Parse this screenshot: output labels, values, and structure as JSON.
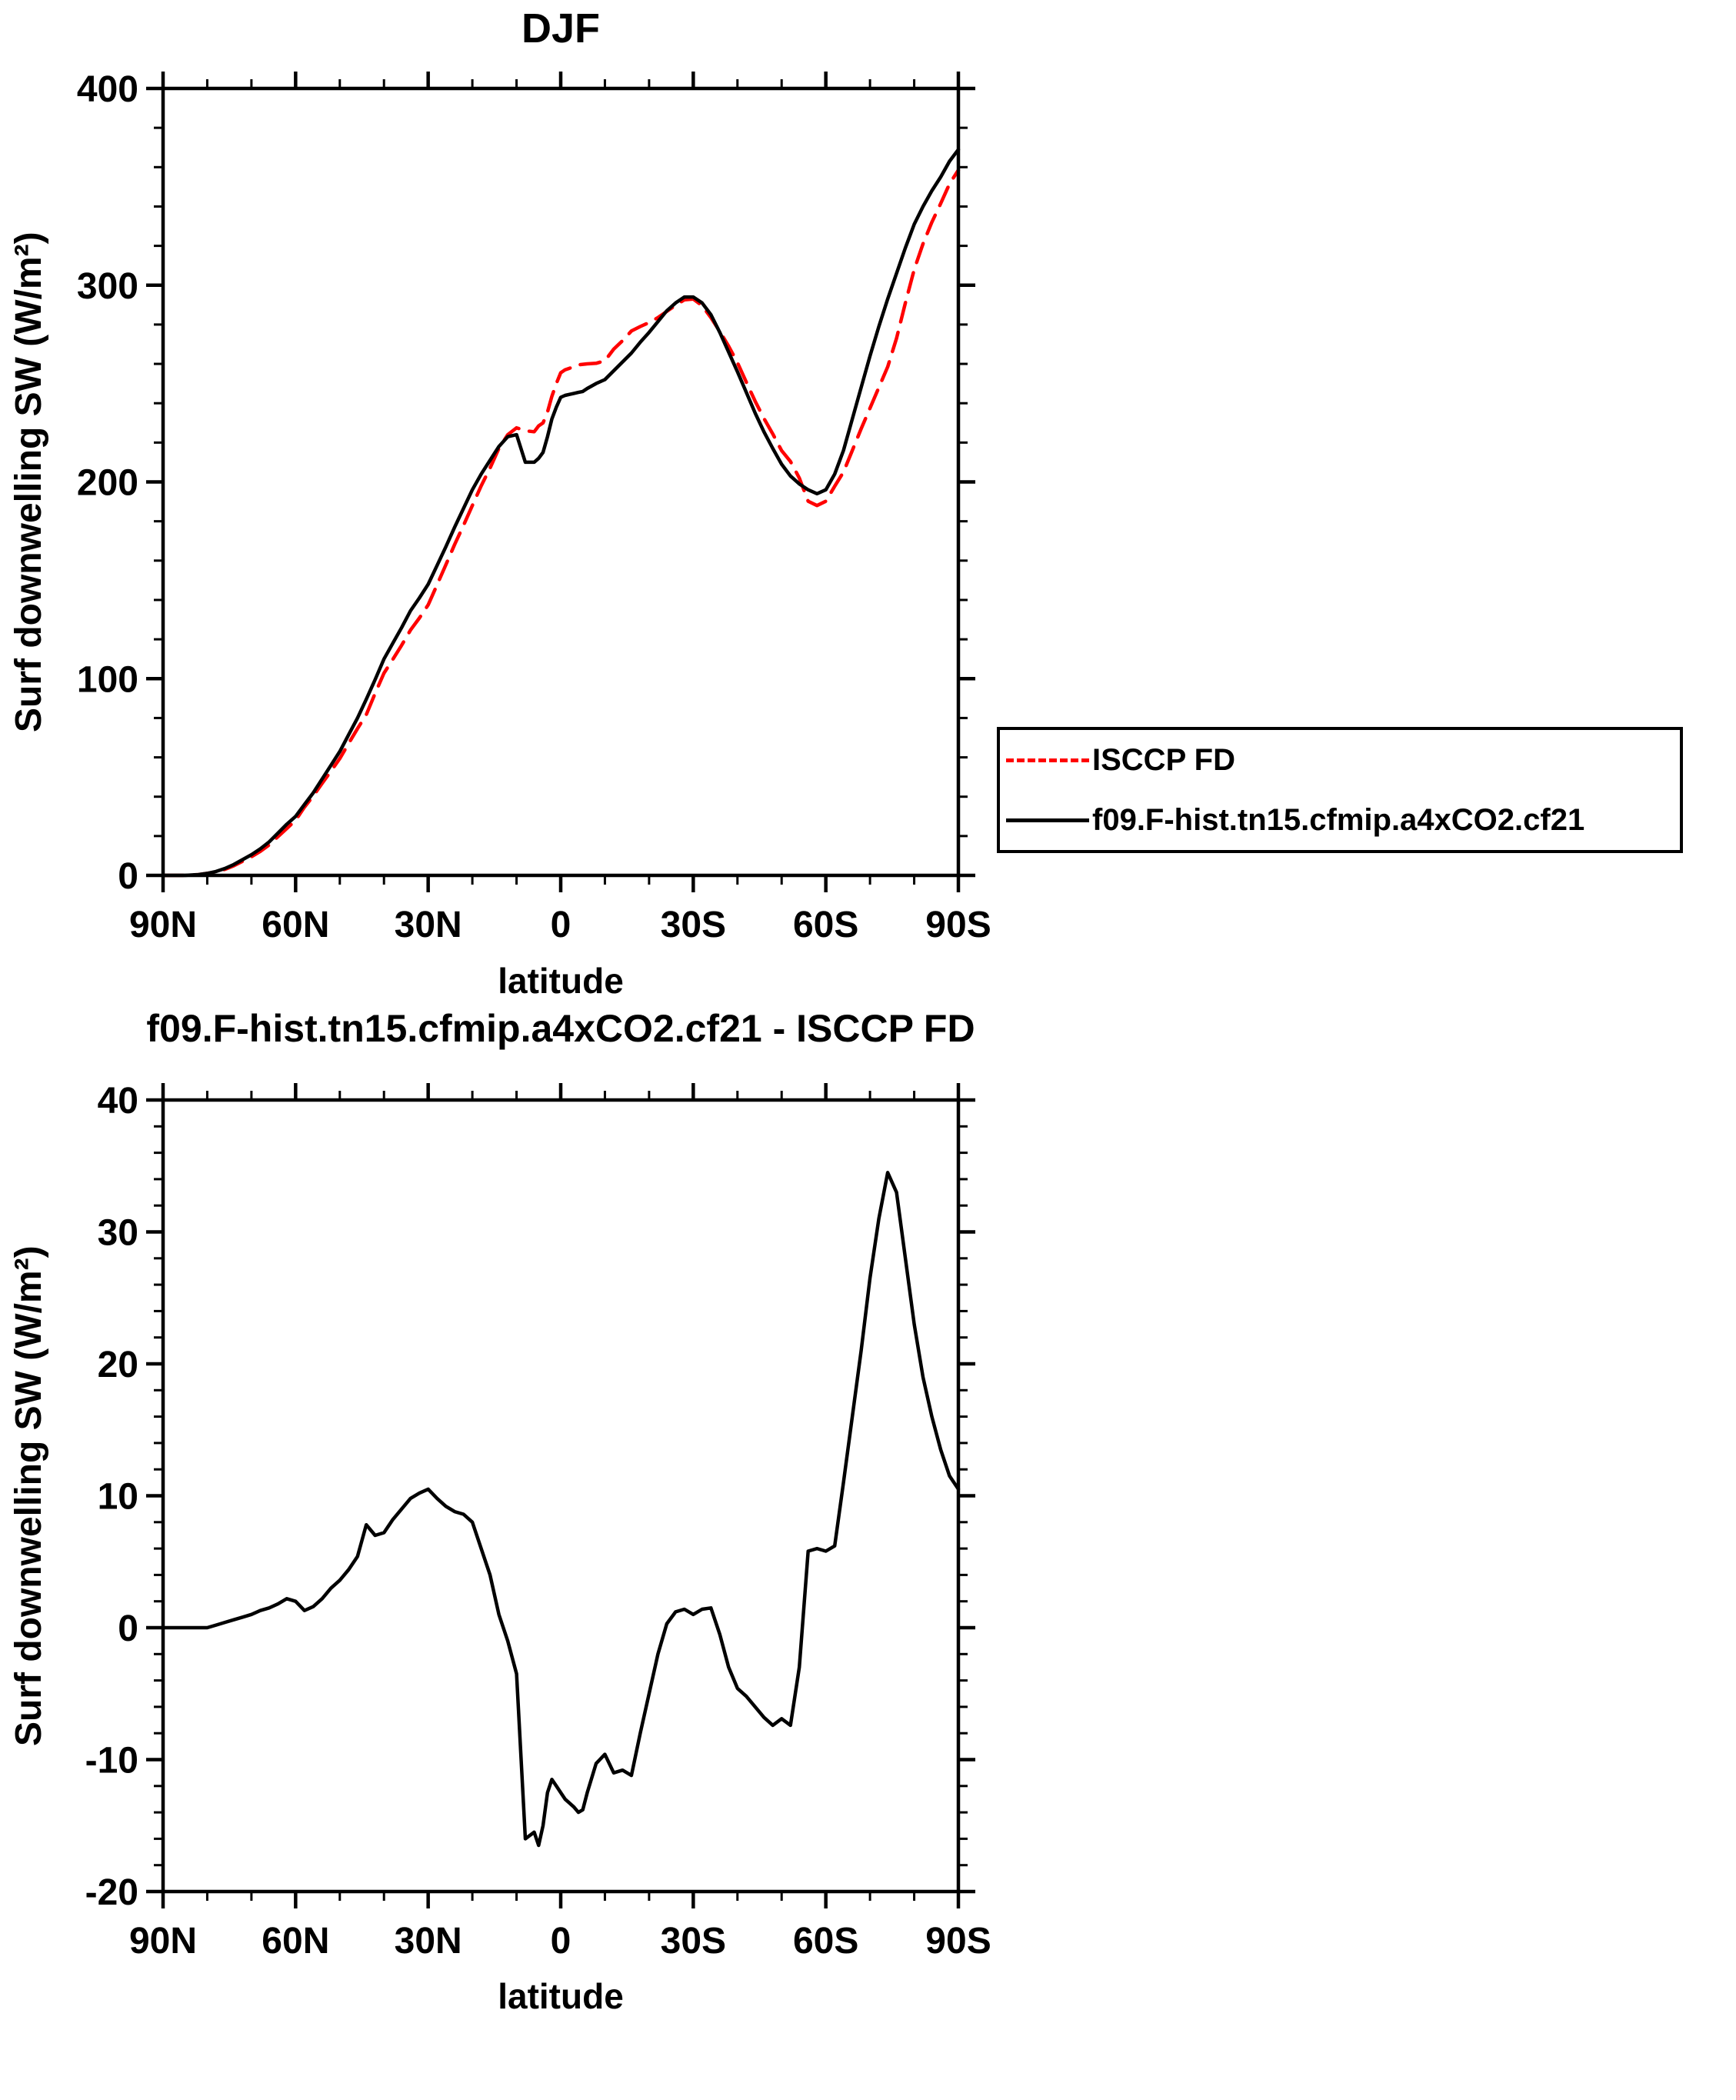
{
  "page": {
    "background": "#ffffff"
  },
  "chart_data": [
    {
      "type": "line",
      "title": "DJF",
      "xlabel": "latitude",
      "ylabel": "Surf downwelling SW (W/m²)",
      "xlim": [
        90,
        -90
      ],
      "ylim": [
        0,
        400
      ],
      "xtick_values": [
        90,
        60,
        30,
        0,
        -30,
        -60,
        -90
      ],
      "xtick_labels": [
        "90N",
        "60N",
        "30N",
        "0",
        "30S",
        "60S",
        "90S"
      ],
      "x_minor_step": 10,
      "ytick_values": [
        0,
        100,
        200,
        300,
        400
      ],
      "y_minor_step": 20,
      "grid": false,
      "legend_position": "outside-right",
      "lat": [
        90,
        87,
        85,
        82,
        80,
        78,
        76,
        74,
        72,
        70,
        68,
        66,
        64,
        62,
        60,
        58,
        56,
        54,
        52,
        50,
        48,
        46,
        44,
        42,
        40,
        38,
        36,
        34,
        32,
        30,
        28,
        26,
        24,
        22,
        20,
        18,
        16,
        14,
        12,
        10,
        8,
        6,
        5,
        4,
        3,
        2,
        1,
        0,
        -1,
        -2,
        -3,
        -4,
        -5,
        -6,
        -8,
        -10,
        -12,
        -14,
        -16,
        -18,
        -20,
        -22,
        -24,
        -26,
        -28,
        -30,
        -32,
        -34,
        -36,
        -38,
        -40,
        -42,
        -44,
        -46,
        -48,
        -50,
        -52,
        -54,
        -56,
        -58,
        -60,
        -62,
        -64,
        -66,
        -68,
        -70,
        -72,
        -74,
        -76,
        -78,
        -80,
        -82,
        -84,
        -86,
        -88,
        -90
      ],
      "series": [
        {
          "name": "ISCCP FD",
          "color": "#ff0000",
          "style": "dashed",
          "values": [
            0,
            0,
            0,
            0.4,
            1,
            1.8,
            3.1,
            4.9,
            7.2,
            9.5,
            12.2,
            15.5,
            19.7,
            23.8,
            28,
            34.7,
            40.4,
            46.8,
            53,
            59.4,
            67.1,
            74.6,
            81.7,
            92.5,
            102.8,
            109.8,
            117,
            124.7,
            130.8,
            137.5,
            147.7,
            157.8,
            168.2,
            177.9,
            188,
            198,
            207,
            217,
            224,
            227.5,
            226,
            225.5,
            228.5,
            230,
            235.5,
            243.5,
            250,
            255.5,
            257,
            257.8,
            258.6,
            259.5,
            259.8,
            260,
            260.3,
            261.6,
            267.5,
            271.8,
            276.7,
            279,
            281,
            283.5,
            286.7,
            289.8,
            292.6,
            293,
            289.6,
            283.5,
            276.5,
            269,
            260.6,
            250.7,
            241,
            232.3,
            224.4,
            215.9,
            210.4,
            202,
            190.2,
            188,
            190.2,
            197.8,
            205,
            216,
            227,
            237.5,
            248,
            258.5,
            273,
            291,
            308,
            321,
            332,
            341.5,
            351.5,
            358.5
          ]
        },
        {
          "name": "f09.F-hist.tn15.cfmip.a4xCO2.cf21",
          "color": "#000000",
          "style": "solid",
          "values": [
            0,
            0,
            0,
            0.4,
            1,
            2,
            3.5,
            5.5,
            8,
            10.5,
            13.5,
            17,
            21.5,
            26,
            30,
            36,
            42,
            49,
            56,
            63,
            71.5,
            80,
            89.5,
            99.5,
            110,
            118,
            126,
            134.5,
            141,
            148,
            157.5,
            167,
            177,
            186.5,
            196,
            204,
            211,
            218,
            223,
            224,
            210,
            210,
            212,
            215,
            223,
            232,
            238,
            243,
            244,
            244.5,
            245,
            245.5,
            246,
            247.5,
            250,
            252,
            256.5,
            261,
            265.5,
            271,
            276,
            281.5,
            287,
            291,
            294,
            294,
            291,
            285,
            276,
            266,
            256,
            245.5,
            235,
            225.5,
            217,
            209,
            203,
            199,
            196,
            194,
            196,
            204,
            216,
            232,
            248,
            264,
            279,
            293,
            306,
            319,
            331,
            340,
            348,
            355,
            363,
            369
          ]
        }
      ]
    },
    {
      "type": "line",
      "title": "f09.F-hist.tn15.cfmip.a4xCO2.cf21 - ISCCP FD",
      "xlabel": "latitude",
      "ylabel": "Surf downwelling SW (W/m²)",
      "xlim": [
        90,
        -90
      ],
      "ylim": [
        -20,
        40
      ],
      "xtick_values": [
        90,
        60,
        30,
        0,
        -30,
        -60,
        -90
      ],
      "xtick_labels": [
        "90N",
        "60N",
        "30N",
        "0",
        "30S",
        "60S",
        "90S"
      ],
      "x_minor_step": 10,
      "ytick_values": [
        -20,
        -10,
        0,
        10,
        20,
        30,
        40
      ],
      "y_minor_step": 2,
      "grid": false,
      "legend_position": "none",
      "lat": [
        90,
        87,
        85,
        82,
        80,
        78,
        76,
        74,
        72,
        70,
        68,
        66,
        64,
        62,
        60,
        58,
        56,
        54,
        52,
        50,
        48,
        46,
        44,
        42,
        40,
        38,
        36,
        34,
        32,
        30,
        28,
        26,
        24,
        22,
        20,
        18,
        16,
        14,
        12,
        10,
        8,
        6,
        5,
        4,
        3,
        2,
        1,
        0,
        -1,
        -2,
        -3,
        -4,
        -5,
        -6,
        -8,
        -10,
        -12,
        -14,
        -16,
        -18,
        -20,
        -22,
        -24,
        -26,
        -28,
        -30,
        -32,
        -34,
        -36,
        -38,
        -40,
        -42,
        -44,
        -46,
        -48,
        -50,
        -52,
        -54,
        -56,
        -58,
        -60,
        -62,
        -64,
        -66,
        -68,
        -70,
        -72,
        -74,
        -76,
        -78,
        -80,
        -82,
        -84,
        -86,
        -88,
        -90
      ],
      "series": [
        {
          "name": "f09.F-hist.tn15.cfmip.a4xCO2.cf21 - ISCCP FD",
          "color": "#000000",
          "style": "solid",
          "values": [
            0,
            0,
            0,
            0,
            0,
            0.2,
            0.4,
            0.6,
            0.8,
            1,
            1.3,
            1.5,
            1.8,
            2.2,
            2,
            1.3,
            1.6,
            2.2,
            3,
            3.6,
            4.4,
            5.4,
            7.8,
            7,
            7.2,
            8.2,
            9,
            9.8,
            10.2,
            10.5,
            9.8,
            9.2,
            8.8,
            8.6,
            8,
            6,
            4,
            1,
            -1,
            -3.5,
            -16,
            -15.5,
            -16.5,
            -15,
            -12.5,
            -11.5,
            -12,
            -12.5,
            -13,
            -13.3,
            -13.6,
            -14,
            -13.8,
            -12.5,
            -10.3,
            -9.6,
            -11,
            -10.8,
            -11.2,
            -8,
            -5,
            -2,
            0.3,
            1.2,
            1.4,
            1,
            1.4,
            1.5,
            -0.5,
            -3,
            -4.6,
            -5.2,
            -6,
            -6.8,
            -7.4,
            -6.9,
            -7.4,
            -3,
            5.8,
            6,
            5.8,
            6.2,
            11,
            16,
            21,
            26.5,
            31,
            34.5,
            33,
            28,
            23,
            19,
            16,
            13.5,
            11.5,
            10.5
          ]
        }
      ]
    }
  ]
}
